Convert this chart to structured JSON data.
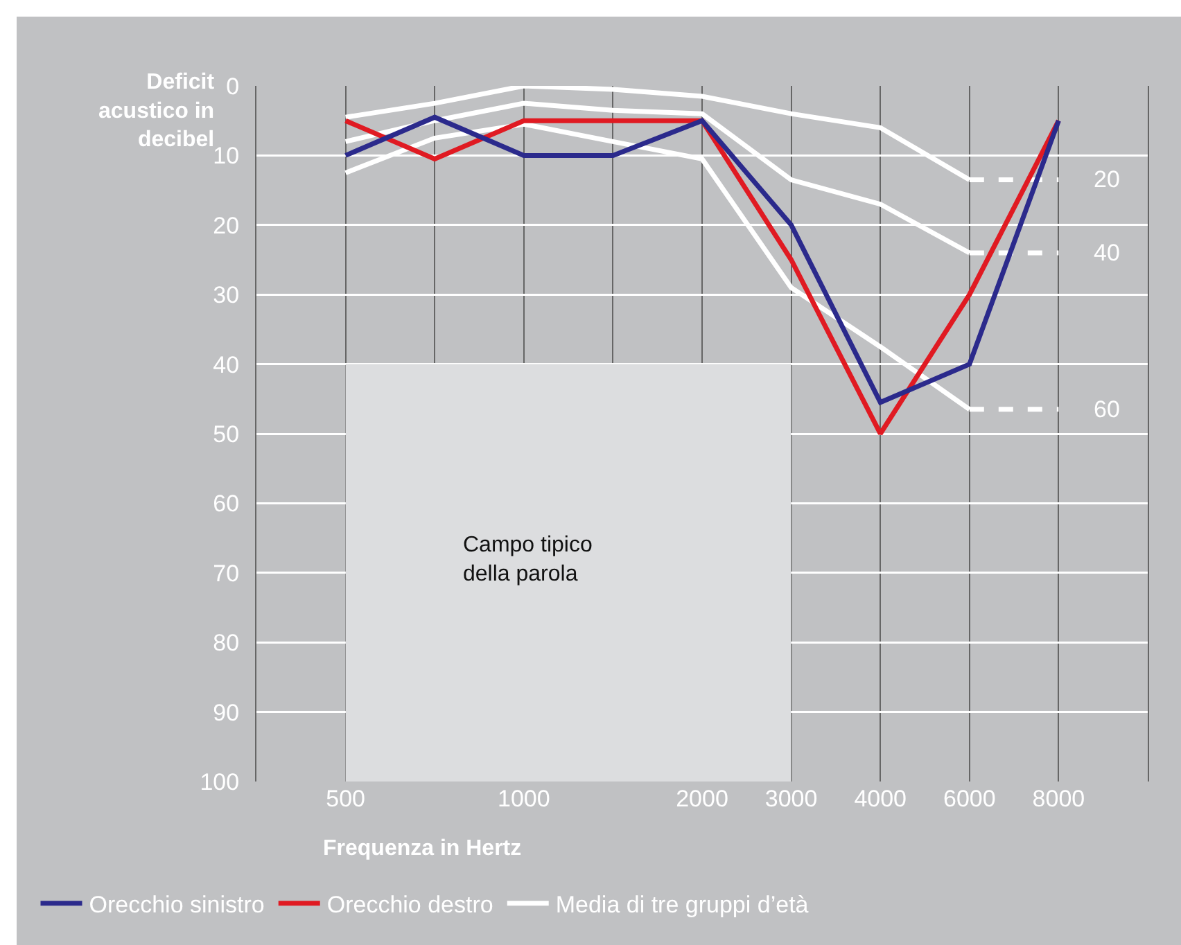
{
  "chart_data": {
    "type": "line",
    "xlabel": "Frequenza in Hertz",
    "ylabel": "Deficit\nacustico in\ndecibel",
    "categories": [
      "500",
      null,
      "1000",
      null,
      "2000",
      "3000",
      "4000",
      "6000",
      "8000"
    ],
    "ylim": [
      100,
      0
    ],
    "yticks": [
      0,
      10,
      20,
      30,
      40,
      50,
      60,
      70,
      80,
      90,
      100
    ],
    "grid": true,
    "legend": "bottom",
    "series": [
      {
        "color": "#dcdddf",
        "values": [
          null,
          null,
          null,
          null,
          null,
          null,
          null,
          null,
          null
        ],
        "lower": [
          40,
          40,
          40,
          40,
          40,
          40,
          null,
          null,
          null
        ],
        "upper": [
          100,
          100,
          100,
          100,
          100,
          100,
          null,
          null,
          null
        ]
      },
      {
        "color": "#ffffff",
        "values": [
          null,
          null,
          null,
          null,
          null,
          null,
          null,
          13.5,
          13.5
        ],
        "line_style": "dashed"
      },
      {
        "color": "#ffffff",
        "values": [
          null,
          null,
          null,
          null,
          null,
          null,
          null,
          24,
          24
        ],
        "line_style": "dashed"
      },
      {
        "color": "#ffffff",
        "values": [
          null,
          null,
          null,
          null,
          null,
          null,
          null,
          46.5,
          46.5
        ],
        "line_style": "dashed"
      },
      {
        "name": "Media di tre gruppi d’età",
        "color": "#ffffff",
        "values": [
          4.5,
          2.5,
          0,
          0.5,
          1.5,
          4,
          6,
          13.5,
          null
        ]
      },
      {
        "color": "#ffffff",
        "values": [
          8,
          5,
          2.5,
          3.5,
          4,
          13.5,
          17,
          24,
          null
        ]
      },
      {
        "color": "#ffffff",
        "values": [
          12.5,
          7.5,
          5.5,
          8,
          10.5,
          29,
          37.5,
          46.5,
          null
        ]
      },
      {
        "name": "Orecchio destro",
        "color": "#e01a22",
        "values": [
          5,
          10.5,
          5,
          5,
          5,
          25,
          50,
          30,
          5
        ]
      },
      {
        "name": "Orecchio sinistro",
        "color": "#2b2a8c",
        "values": [
          10,
          4.5,
          10,
          10,
          5,
          20,
          45.5,
          40,
          5
        ]
      }
    ],
    "annotations": [
      {
        "text": "20",
        "x": "8000",
        "y": 13.5
      },
      {
        "text": "40",
        "x": "8000",
        "y": 24
      },
      {
        "text": "60",
        "x": "8000",
        "y": 46.5
      },
      "Campo tipico\ndella parola"
    ]
  }
}
